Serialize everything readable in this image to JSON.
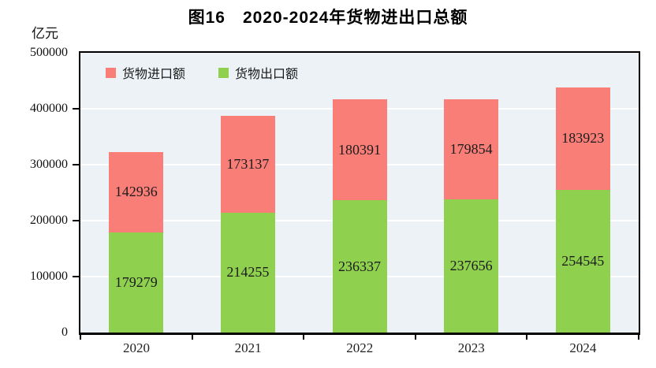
{
  "chart": {
    "title": "图16　2020-2024年货物进出口总额",
    "unit_label": "亿元",
    "legend": [
      {
        "label": "货物进口额",
        "color": "#fa7e78"
      },
      {
        "label": "货物出口额",
        "color": "#8fd04f"
      }
    ]
  },
  "chart_data": {
    "type": "bar",
    "stacked": true,
    "title": "图16　2020-2024年货物进出口总额",
    "ylabel": "亿元",
    "categories": [
      "2020",
      "2021",
      "2022",
      "2023",
      "2024"
    ],
    "series": [
      {
        "name": "货物出口额",
        "color": "#8fd04f",
        "values": [
          179279,
          214255,
          236337,
          237656,
          254545
        ]
      },
      {
        "name": "货物进口额",
        "color": "#fa7e78",
        "values": [
          142936,
          173137,
          180391,
          179854,
          183923
        ]
      }
    ],
    "ylim": [
      0,
      500000
    ],
    "yticks": [
      0,
      100000,
      200000,
      300000,
      400000,
      500000
    ],
    "grid": true,
    "gridline_color": "#ffffff",
    "plot_background": "#ecf2f5",
    "legend_position": "top-left-inside"
  }
}
